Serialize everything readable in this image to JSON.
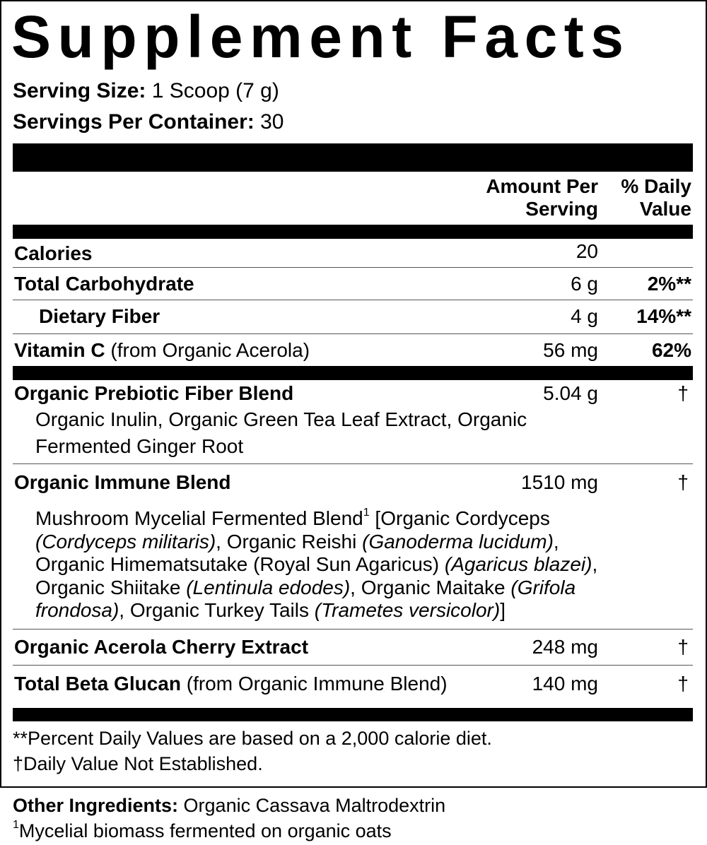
{
  "title": "Supplement Facts",
  "serving": {
    "size_label": "Serving Size:",
    "size_value": "1 Scoop (7 g)",
    "per_container_label": "Servings Per Container:",
    "per_container_value": "30"
  },
  "header": {
    "amount_line1": "Amount Per",
    "amount_line2": "Serving",
    "dv_line1": "% Daily",
    "dv_line2": "Value"
  },
  "rows": [
    {
      "name": "Calories",
      "amount": "20",
      "dv": ""
    },
    {
      "name": "Total Carbohydrate",
      "amount": "6 g",
      "dv": "2%**"
    },
    {
      "name": "Dietary Fiber",
      "amount": "4 g",
      "dv": "14%**"
    },
    {
      "name": "Vitamin C",
      "note": "(from Organic Acerola)",
      "amount": "56 mg",
      "dv": "62%"
    }
  ],
  "blends": [
    {
      "name": "Organic Prebiotic Fiber Blend",
      "amount": "5.04 g",
      "dv": "†",
      "line1": "Organic Inulin, Organic Green Tea Leaf Extract, Organic",
      "line2": "Fermented Ginger Root"
    },
    {
      "name": "Organic Immune Blend",
      "amount": "1510 mg",
      "dv": "†",
      "sub": {
        "a": "Mushroom Mycelial Fermented Blend",
        "sup": "1",
        "b": " [Organic Cordyceps",
        "c": "(Cordyceps militaris)",
        "d": ", Organic Reishi ",
        "e": "(Ganoderma lucidum)",
        "f": ",",
        "g": "Organic Himematsutake (Royal Sun Agaricus) ",
        "h": "(Agaricus blazei)",
        "i": ",",
        "j": "Organic Shiitake ",
        "k": "(Lentinula edodes)",
        "l": ", Organic Maitake ",
        "m": "(Grifola",
        "n": "frondosa)",
        "o": ", Organic Turkey Tails ",
        "p": "(Trametes versicolor)",
        "q": "]"
      }
    },
    {
      "name": "Organic Acerola Cherry Extract",
      "amount": "248 mg",
      "dv": "†"
    },
    {
      "name": "Total Beta Glucan",
      "note": "(from Organic Immune Blend)",
      "amount": "140 mg",
      "dv": "†"
    }
  ],
  "footnotes": {
    "dv_basis": "**Percent Daily Values are based on a 2,000 calorie diet.",
    "dagger": "†",
    "not_established": "Daily Value Not Established."
  },
  "other": {
    "label": "Other Ingredients:",
    "value": "Organic Cassava Maltrodextrin",
    "footnote_mark": "1",
    "footnote_text": "Mycelial biomass fermented on organic oats"
  }
}
